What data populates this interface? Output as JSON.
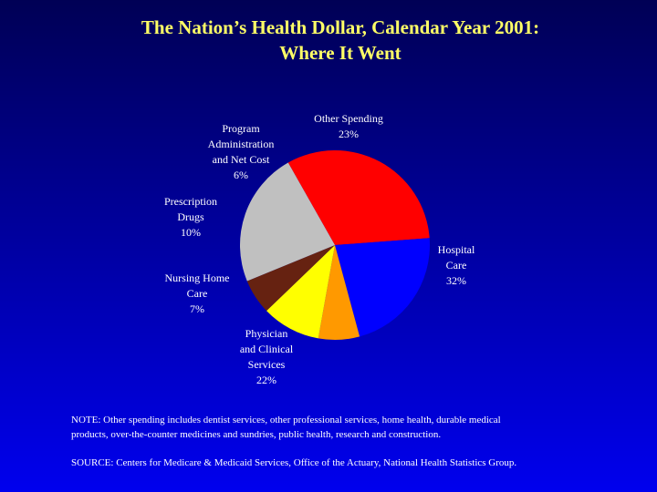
{
  "title": {
    "line1": "The Nation’s Health Dollar, Calendar Year 2001:",
    "line2": "Where It Went"
  },
  "chart_data": {
    "type": "pie",
    "title": "The Nation’s Health Dollar, Calendar Year 2001: Where It Went",
    "slices": [
      {
        "label_lines": [
          "Hospital",
          "Care"
        ],
        "value": 32,
        "value_label": "32%",
        "color": "#ff0000"
      },
      {
        "label_lines": [
          "Physician",
          "and Clinical",
          "Services"
        ],
        "value": 22,
        "value_label": "22%",
        "color": "#0000ff"
      },
      {
        "label_lines": [
          "Nursing Home",
          "Care"
        ],
        "value": 7,
        "value_label": "7%",
        "color": "#ff9900"
      },
      {
        "label_lines": [
          "Prescription",
          "Drugs"
        ],
        "value": 10,
        "value_label": "10%",
        "color": "#ffff00"
      },
      {
        "label_lines": [
          "Program",
          "Administration",
          "and Net Cost"
        ],
        "value": 6,
        "value_label": "6%",
        "color": "#662211"
      },
      {
        "label_lines": [
          "Other Spending"
        ],
        "value": 23,
        "value_label": "23%",
        "color": "#c0c0c0"
      }
    ]
  },
  "note": "NOTE: Other spending includes dentist services, other professional services, home health, durable medical products, over-the-counter medicines and sundries, public health, research and construction.",
  "source": "SOURCE: Centers for Medicare & Medicaid Services, Office of the Actuary, National Health Statistics Group."
}
